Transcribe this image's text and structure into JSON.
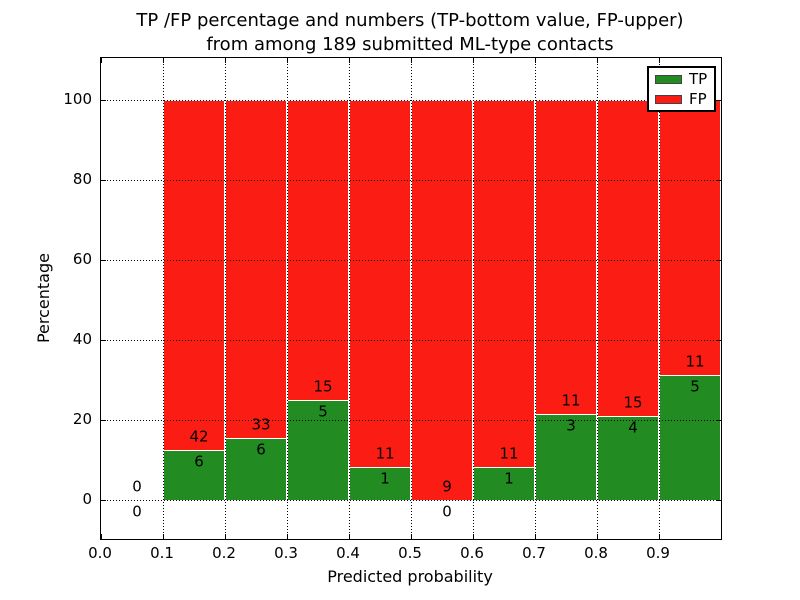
{
  "figure": {
    "title_line1": "TP /FP percentage and numbers (TP-bottom value, FP-upper)",
    "title_line2": "from among 189 submitted ML-type contacts",
    "background_color": "#ffffff"
  },
  "chart_data": {
    "type": "bar",
    "stacked": true,
    "title": "TP /FP percentage and numbers (TP-bottom value, FP-upper) from among 189 submitted ML-type contacts",
    "xlabel": "Predicted probability",
    "ylabel": "Percentage",
    "total_contacts": 189,
    "xlim": [
      0.0,
      1.0
    ],
    "ylim": [
      -9.75,
      110.5
    ],
    "grid": "dotted",
    "xticks": [
      {
        "label": "0.0",
        "value": 0.0
      },
      {
        "label": "0.1",
        "value": 0.1
      },
      {
        "label": "0.2",
        "value": 0.2
      },
      {
        "label": "0.3",
        "value": 0.3
      },
      {
        "label": "0.4",
        "value": 0.4
      },
      {
        "label": "0.5",
        "value": 0.5
      },
      {
        "label": "0.6",
        "value": 0.6
      },
      {
        "label": "0.7",
        "value": 0.7
      },
      {
        "label": "0.8",
        "value": 0.8
      },
      {
        "label": "0.9",
        "value": 0.9
      }
    ],
    "yticks": [
      {
        "label": "0",
        "value": 0
      },
      {
        "label": "20",
        "value": 20
      },
      {
        "label": "40",
        "value": 40
      },
      {
        "label": "60",
        "value": 60
      },
      {
        "label": "80",
        "value": 80
      },
      {
        "label": "100",
        "value": 100
      }
    ],
    "bins": [
      {
        "range": [
          0.0,
          0.1
        ],
        "tp": 0,
        "fp": 0,
        "tp_pct": 0.0
      },
      {
        "range": [
          0.1,
          0.2
        ],
        "tp": 6,
        "fp": 42,
        "tp_pct": 12.5
      },
      {
        "range": [
          0.2,
          0.3
        ],
        "tp": 6,
        "fp": 33,
        "tp_pct": 15.4
      },
      {
        "range": [
          0.3,
          0.4
        ],
        "tp": 5,
        "fp": 15,
        "tp_pct": 25.0
      },
      {
        "range": [
          0.4,
          0.5
        ],
        "tp": 1,
        "fp": 11,
        "tp_pct": 8.3
      },
      {
        "range": [
          0.5,
          0.6
        ],
        "tp": 0,
        "fp": 9,
        "tp_pct": 0.0
      },
      {
        "range": [
          0.6,
          0.7
        ],
        "tp": 1,
        "fp": 11,
        "tp_pct": 8.3
      },
      {
        "range": [
          0.7,
          0.8
        ],
        "tp": 3,
        "fp": 11,
        "tp_pct": 21.4
      },
      {
        "range": [
          0.8,
          0.9
        ],
        "tp": 4,
        "fp": 15,
        "tp_pct": 21.1
      },
      {
        "range": [
          0.9,
          1.0
        ],
        "tp": 5,
        "fp": 11,
        "tp_pct": 31.3
      }
    ],
    "colors": {
      "tp": "#228b22",
      "fp": "#fb1d14",
      "grid": "#000000",
      "bar_edge": "#ffffff",
      "text": "#000000"
    },
    "legend": {
      "position": "upper right",
      "entries": [
        {
          "label": "TP",
          "color": "#228b22"
        },
        {
          "label": "FP",
          "color": "#fb1d14"
        }
      ]
    }
  }
}
